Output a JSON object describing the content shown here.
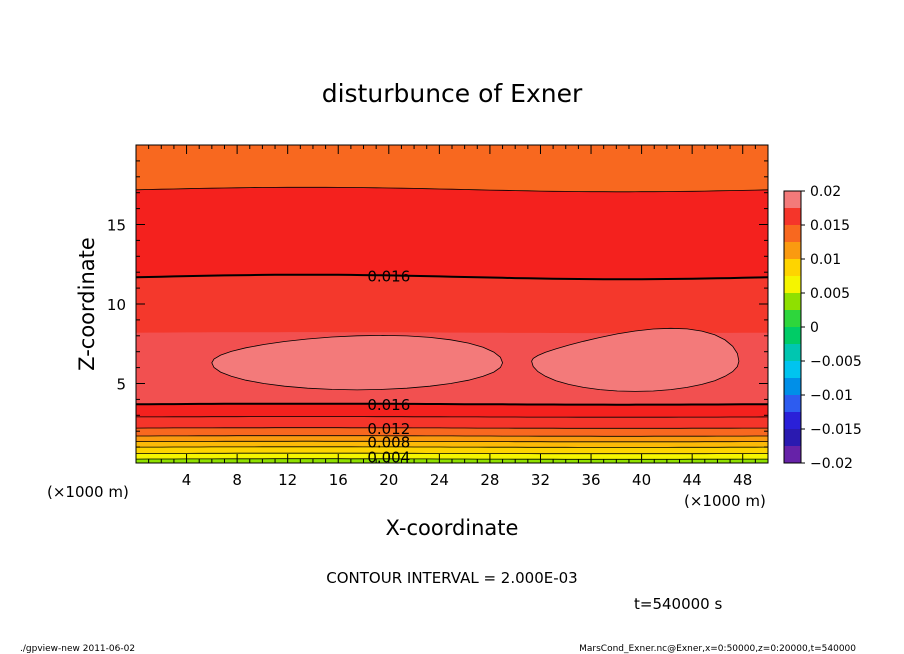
{
  "chart_data": {
    "type": "heatmap",
    "title": "disturbunce of Exner",
    "xlabel": "X-coordinate",
    "ylabel": "Z-coordinate",
    "x_unit": "(×1000 m)",
    "y_unit": "(×1000 m)",
    "xlim": [
      0,
      50
    ],
    "ylim": [
      0,
      20
    ],
    "x_ticks": [
      "4",
      "8",
      "12",
      "16",
      "20",
      "24",
      "28",
      "32",
      "36",
      "40",
      "44",
      "48"
    ],
    "y_ticks": [
      "5",
      "10",
      "15"
    ],
    "colorbar": {
      "range": [
        -0.02,
        0.02
      ],
      "tick_labels": [
        "0.02",
        "0.015",
        "0.01",
        "0.005",
        "0",
        "−0.005",
        "−0.01",
        "−0.015",
        "−0.02"
      ],
      "colors": [
        "#f37a7a",
        "#f5352a",
        "#f8681f",
        "#fa9a10",
        "#fed400",
        "#f5f500",
        "#8fe000",
        "#2ed63c",
        "#00cc66",
        "#00c6b0",
        "#00c4ef",
        "#008fe8",
        "#2d5cf0",
        "#2a20d8",
        "#2a1ab0",
        "#6622a8"
      ]
    },
    "contour_labels": [
      "0.016",
      "0.016",
      "0.012",
      "0.008",
      "0.004"
    ],
    "contour_interval": "CONTOUR INTERVAL = 2.000E-03",
    "time": "t=540000 s",
    "color_levels_bottom_to_top": [
      {
        "z_top": 0.25,
        "color": "#8fe000"
      },
      {
        "z_top": 0.6,
        "color": "#f5f500"
      },
      {
        "z_top": 1.0,
        "color": "#fed400"
      },
      {
        "z_top": 1.35,
        "color": "#fcba08"
      },
      {
        "z_top": 1.7,
        "color": "#fa9a10"
      },
      {
        "z_top": 2.2,
        "color": "#f8681f"
      },
      {
        "z_top": 2.9,
        "color": "#f5352a"
      },
      {
        "z_top": 3.7,
        "color": "#f4211e"
      },
      {
        "z_top": 8.2,
        "color": "#f25050"
      },
      {
        "z_top": 11.7,
        "color": "#f4382c"
      },
      {
        "z_top": 17.2,
        "color": "#f4211e"
      },
      {
        "z_top": 20,
        "color": "#f8681f"
      }
    ]
  },
  "footer": {
    "left": "./gpview-new   2011-06-02",
    "right": "MarsCond_Exner.nc@Exner,x=0:50000,z=0:20000,t=540000"
  }
}
